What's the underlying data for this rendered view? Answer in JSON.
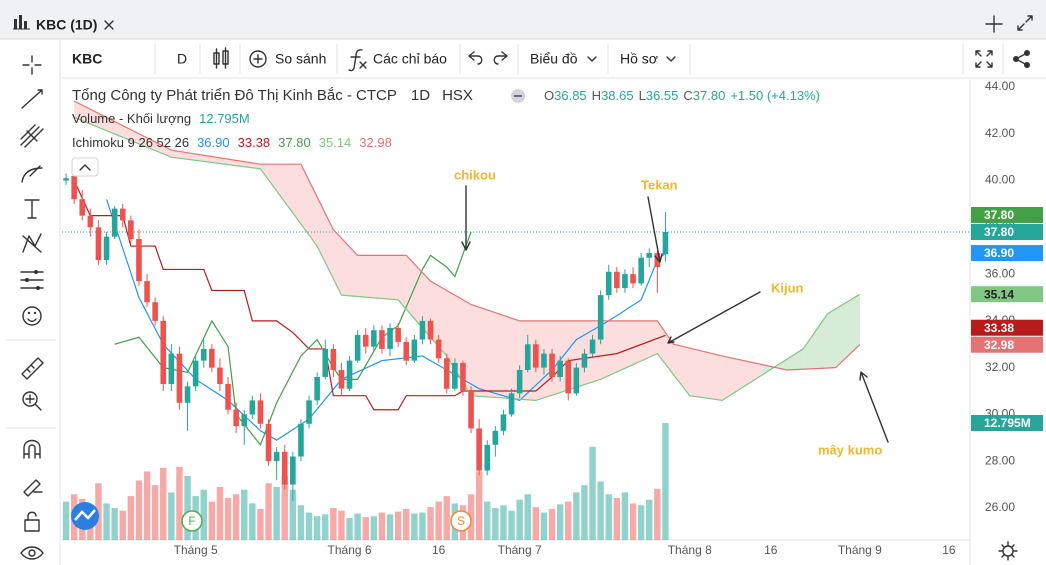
{
  "window": {
    "tab_title": "KBC (1D)"
  },
  "toolbar": {
    "symbol": "KBC",
    "interval": "D",
    "compare": "So sánh",
    "indicators": "Các chỉ báo",
    "chart_menu": "Biểu đồ",
    "profile_menu": "Hồ sơ"
  },
  "chart_data": {
    "type": "candlestick",
    "title": "Tổng Công ty Phát triển Đô Thị Kinh Bắc - CTCP",
    "interval": "1D",
    "exchange": "HSX",
    "ohlc_header": [
      {
        "label": "O",
        "value": "36.85"
      },
      {
        "label": "H",
        "value": "38.65"
      },
      {
        "label": "L",
        "value": "36.55"
      },
      {
        "label": "C",
        "value": "37.80"
      }
    ],
    "change": "+1.50 (+4.13%)",
    "volume_label": "Volume - Khối lượng",
    "indicator_label": "Ichimoku 9 26 52 26",
    "open": [
      40.0,
      40.2,
      39.2,
      38.5,
      38.0,
      36.6,
      37.6,
      38.8,
      38.3,
      37.5,
      35.7,
      34.8,
      34.0,
      31.3,
      32.6,
      30.5,
      31.2,
      32.3,
      32.8,
      32.0,
      31.3,
      30.2,
      29.5,
      30.0,
      30.6,
      29.6,
      28.0,
      28.4,
      27.0,
      28.2,
      29.6,
      30.6,
      31.6,
      32.8,
      31.9,
      31.1,
      32.3,
      33.4,
      32.9,
      33.6,
      32.8,
      33.7,
      33.1,
      32.3,
      33.2,
      34.0,
      33.2,
      32.4,
      31.1,
      32.2,
      31.0,
      29.4,
      27.6,
      28.7,
      29.3,
      30.0,
      30.9,
      31.9,
      33.0,
      32.0,
      32.6,
      31.6,
      32.3,
      30.9,
      32.0,
      32.6,
      33.2,
      35.1,
      36.1,
      35.4,
      36.0,
      35.6,
      36.7,
      36.9,
      36.85
    ],
    "high": [
      40.3,
      40.3,
      39.6,
      38.8,
      38.3,
      37.8,
      38.9,
      39.0,
      38.5,
      37.9,
      36.0,
      35.0,
      34.2,
      33.0,
      32.9,
      31.4,
      32.5,
      33.2,
      33.0,
      32.4,
      31.6,
      30.5,
      30.2,
      30.8,
      30.9,
      29.8,
      28.6,
      28.7,
      28.4,
      29.8,
      30.8,
      31.8,
      33.2,
      33.0,
      32.2,
      32.5,
      33.6,
      33.7,
      33.8,
      33.8,
      33.9,
      33.9,
      33.3,
      33.4,
      34.2,
      34.1,
      33.4,
      32.6,
      32.4,
      32.3,
      31.2,
      29.8,
      28.9,
      29.5,
      30.2,
      31.1,
      32.1,
      33.4,
      33.2,
      32.8,
      32.8,
      32.5,
      32.4,
      32.2,
      32.8,
      33.4,
      35.3,
      36.4,
      36.3,
      36.2,
      36.3,
      36.9,
      37.1,
      37.0,
      38.65
    ],
    "low": [
      39.8,
      39.0,
      38.3,
      37.6,
      36.4,
      36.4,
      37.5,
      38.0,
      37.3,
      35.5,
      34.6,
      33.8,
      31.0,
      31.0,
      30.2,
      29.3,
      31.0,
      32.0,
      31.8,
      31.0,
      30.0,
      29.2,
      28.7,
      29.8,
      29.4,
      27.8,
      27.2,
      26.8,
      26.3,
      28.0,
      29.4,
      30.4,
      31.5,
      31.6,
      30.8,
      31.0,
      32.2,
      32.6,
      32.7,
      32.6,
      32.5,
      32.9,
      32.1,
      32.2,
      33.0,
      33.0,
      32.2,
      30.9,
      31.0,
      30.8,
      29.2,
      27.4,
      27.4,
      28.2,
      29.1,
      29.9,
      30.7,
      31.8,
      31.8,
      31.7,
      31.4,
      31.4,
      30.6,
      30.8,
      31.8,
      32.4,
      33.0,
      34.9,
      35.2,
      35.2,
      35.4,
      35.5,
      36.3,
      35.2,
      36.55
    ],
    "close": [
      40.1,
      39.2,
      38.5,
      38.0,
      36.6,
      37.6,
      38.8,
      38.3,
      37.5,
      35.7,
      34.8,
      34.0,
      31.3,
      32.6,
      30.5,
      31.2,
      32.3,
      32.8,
      32.0,
      31.3,
      30.2,
      29.5,
      30.0,
      30.6,
      29.6,
      28.0,
      28.4,
      27.0,
      28.2,
      29.6,
      30.6,
      31.6,
      32.8,
      31.9,
      31.1,
      32.3,
      33.4,
      32.9,
      33.6,
      32.8,
      33.7,
      33.1,
      32.3,
      33.2,
      34.0,
      33.2,
      32.4,
      31.1,
      32.2,
      31.0,
      29.4,
      27.6,
      28.7,
      29.3,
      30.0,
      30.9,
      31.9,
      33.0,
      32.0,
      32.6,
      31.6,
      32.3,
      30.9,
      32.0,
      32.6,
      33.2,
      35.1,
      36.1,
      35.4,
      36.0,
      35.6,
      36.7,
      36.9,
      36.3,
      37.8
    ],
    "up_color": "#26a69a",
    "down_color": "#ef5350",
    "last_price": {
      "value": 37.8,
      "label": "37.80"
    },
    "volume": {
      "values": [
        4.2,
        5.0,
        4.5,
        3.8,
        6.2,
        4.0,
        3.5,
        3.2,
        4.8,
        6.5,
        7.5,
        6.0,
        7.9,
        5.2,
        8.0,
        7.0,
        4.8,
        5.5,
        4.2,
        5.8,
        4.6,
        5.0,
        5.5,
        4.0,
        3.4,
        6.2,
        5.8,
        7.0,
        5.5,
        3.8,
        3.0,
        2.6,
        2.8,
        3.5,
        3.2,
        2.4,
        2.9,
        2.5,
        2.6,
        3.0,
        2.8,
        3.1,
        3.4,
        2.9,
        3.0,
        3.6,
        4.2,
        4.8,
        4.0,
        3.8,
        5.0,
        7.5,
        4.2,
        3.5,
        3.8,
        3.2,
        4.4,
        5.0,
        3.6,
        3.0,
        3.4,
        3.9,
        4.2,
        5.2,
        6.0,
        10.2,
        6.4,
        5.0,
        4.6,
        5.2,
        4.0,
        3.8,
        4.4,
        5.6,
        12.795
      ],
      "legend_value": {
        "value": 12.795,
        "label": "12.795M"
      }
    },
    "series": [
      {
        "color": "#2196f3",
        "x": [
          5,
          9,
          12,
          16,
          20,
          24,
          26,
          30,
          34,
          39,
          44,
          47,
          51,
          56,
          60,
          63,
          67,
          71,
          73,
          74
        ],
        "values": [
          39.2,
          35.0,
          33.0,
          31.5,
          30.6,
          29.3,
          28.9,
          29.8,
          31.5,
          32.3,
          32.5,
          31.9,
          31.1,
          30.6,
          31.9,
          33.2,
          34.0,
          34.9,
          36.6,
          36.9
        ],
        "legend_value": {
          "value": 36.9,
          "label": "36.90"
        }
      },
      {
        "color": "#b71c1c",
        "x": [
          1,
          3,
          7,
          8,
          11,
          12,
          17,
          18,
          22,
          23,
          26,
          28,
          30,
          32,
          33,
          37,
          38,
          41,
          42,
          48,
          49,
          58,
          60,
          62,
          68,
          74
        ],
        "values": [
          40.0,
          38.5,
          38.5,
          37.2,
          37.2,
          36.2,
          36.2,
          35.3,
          35.3,
          34.0,
          34.0,
          33.5,
          32.8,
          32.8,
          30.8,
          30.8,
          30.2,
          30.2,
          30.8,
          30.8,
          31.0,
          31.0,
          31.6,
          32.3,
          32.6,
          33.38
        ],
        "legend_value": {
          "value": 33.38,
          "label": "33.38"
        }
      },
      {
        "color": "#43a047",
        "x": [
          6,
          9,
          12,
          15,
          18,
          20,
          21,
          24,
          26,
          29,
          31,
          33,
          34,
          36,
          39,
          41,
          44,
          45,
          47,
          48,
          50
        ],
        "values": [
          33.0,
          33.3,
          32.0,
          31.8,
          34.0,
          32.9,
          30.0,
          28.7,
          30.5,
          32.5,
          33.2,
          32.0,
          31.5,
          31.5,
          33.3,
          33.8,
          36.2,
          36.8,
          36.3,
          35.9,
          37.8
        ],
        "legend_value": {
          "value": 37.8,
          "label": "37.80"
        }
      },
      {
        "color": "#81c784",
        "x": [
          1,
          13,
          24,
          31,
          34,
          41,
          47,
          50,
          58,
          66,
          73,
          77,
          81,
          86,
          91,
          94,
          98
        ],
        "values": [
          42.7,
          41.0,
          40.5,
          37.2,
          35.1,
          34.9,
          32.5,
          30.8,
          30.6,
          31.5,
          32.6,
          30.8,
          30.6,
          31.7,
          32.8,
          34.3,
          35.14
        ],
        "legend_value": {
          "value": 35.14,
          "label": "35.14"
        }
      },
      {
        "color": "#e57373",
        "x": [
          1,
          13,
          24,
          29,
          33,
          36,
          42,
          45,
          50,
          56,
          73,
          75,
          81,
          89,
          95,
          98
        ],
        "values": [
          43.4,
          41.3,
          40.7,
          40.7,
          37.9,
          36.8,
          36.8,
          35.7,
          34.7,
          34.0,
          34.0,
          33.0,
          32.5,
          31.9,
          32.0,
          32.98
        ],
        "legend_value": {
          "value": 32.98,
          "label": "32.98"
        }
      }
    ],
    "cloud_up_color": "#c8e6c9",
    "cloud_down_color": "#fbd3d3",
    "xlim": [
      -0.5,
      111.6
    ],
    "xticks": [
      {
        "value": 16,
        "label": "Tháng 5"
      },
      {
        "value": 35,
        "label": "Tháng 6"
      },
      {
        "value": 46,
        "label": "16"
      },
      {
        "value": 56,
        "label": "Tháng 7"
      },
      {
        "value": 77,
        "label": "Tháng 8"
      },
      {
        "value": 87,
        "label": "16"
      },
      {
        "value": 98,
        "label": "Tháng 9"
      },
      {
        "value": 109,
        "label": "16"
      }
    ],
    "ylim": [
      24.63,
      44.3
    ],
    "yticks": [
      {
        "value": 26,
        "label": "26.00"
      },
      {
        "value": 28,
        "label": "28.00"
      },
      {
        "value": 30,
        "label": "30.00"
      },
      {
        "value": 32,
        "label": "32.00"
      },
      {
        "value": 34,
        "label": "34.00"
      },
      {
        "value": 36,
        "label": "36.00"
      },
      {
        "value": 38,
        "label": "38.00"
      },
      {
        "value": 40,
        "label": "40.00"
      },
      {
        "value": 42,
        "label": "42.00"
      },
      {
        "value": 44,
        "label": "44.00"
      }
    ],
    "annotations": [
      {
        "text": "chikou"
      },
      {
        "text": "Tekan"
      },
      {
        "text": "Kijun"
      },
      {
        "text": "mây kumo"
      }
    ],
    "event_markers": [
      {
        "text": "F"
      },
      {
        "text": "S"
      }
    ]
  }
}
